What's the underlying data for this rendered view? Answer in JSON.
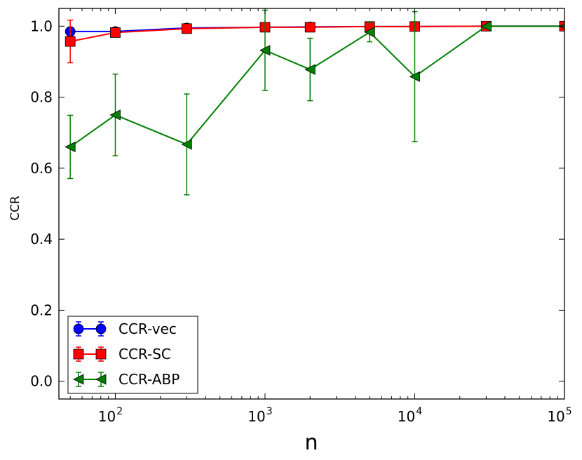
{
  "chart_data": {
    "type": "line",
    "title": "",
    "xlabel": "n",
    "ylabel": "CCR",
    "xscale": "log",
    "xlim": [
      42,
      100000
    ],
    "ylim": [
      -0.05,
      1.05
    ],
    "x_ticks": [
      {
        "value": 100,
        "base": "10",
        "exp": "2"
      },
      {
        "value": 1000,
        "base": "10",
        "exp": "3"
      },
      {
        "value": 10000,
        "base": "10",
        "exp": "4"
      },
      {
        "value": 100000,
        "base": "10",
        "exp": "5"
      }
    ],
    "y_ticks": [
      {
        "value": 0.0,
        "label": "0.0"
      },
      {
        "value": 0.2,
        "label": "0.2"
      },
      {
        "value": 0.4,
        "label": "0.4"
      },
      {
        "value": 0.6,
        "label": "0.6"
      },
      {
        "value": 0.8,
        "label": "0.8"
      },
      {
        "value": 1.0,
        "label": "1.0"
      }
    ],
    "grid": false,
    "legend_position": "lower-left",
    "series": [
      {
        "name": "CCR-vec",
        "color": "#0000ff",
        "marker": "circle",
        "x": [
          50,
          100,
          300,
          1000,
          2000,
          5000,
          10000,
          30000,
          100000
        ],
        "y": [
          0.985,
          0.985,
          0.995,
          0.997,
          0.998,
          0.999,
          0.999,
          1.0,
          1.0
        ],
        "err": [
          0.012,
          0.01,
          0.005,
          0.003,
          0.002,
          0.001,
          0.001,
          0.0,
          0.0
        ]
      },
      {
        "name": "CCR-SC",
        "color": "#ff0000",
        "marker": "square",
        "x": [
          50,
          100,
          300,
          1000,
          2000,
          5000,
          10000,
          30000,
          100000
        ],
        "y": [
          0.957,
          0.982,
          0.993,
          0.997,
          0.997,
          0.999,
          0.999,
          1.0,
          1.0
        ],
        "err": [
          0.06,
          0.012,
          0.006,
          0.003,
          0.003,
          0.001,
          0.001,
          0.0,
          0.0
        ]
      },
      {
        "name": "CCR-ABP",
        "color": "#008000",
        "marker": "triangle-left",
        "x": [
          50,
          100,
          300,
          1000,
          2000,
          5000,
          10000,
          30000,
          100000
        ],
        "y": [
          0.66,
          0.75,
          0.667,
          0.932,
          0.878,
          0.983,
          0.858,
          1.0,
          1.0
        ],
        "err": [
          0.089,
          0.115,
          0.142,
          0.113,
          0.088,
          0.027,
          0.183,
          0.0,
          0.0
        ]
      }
    ]
  }
}
